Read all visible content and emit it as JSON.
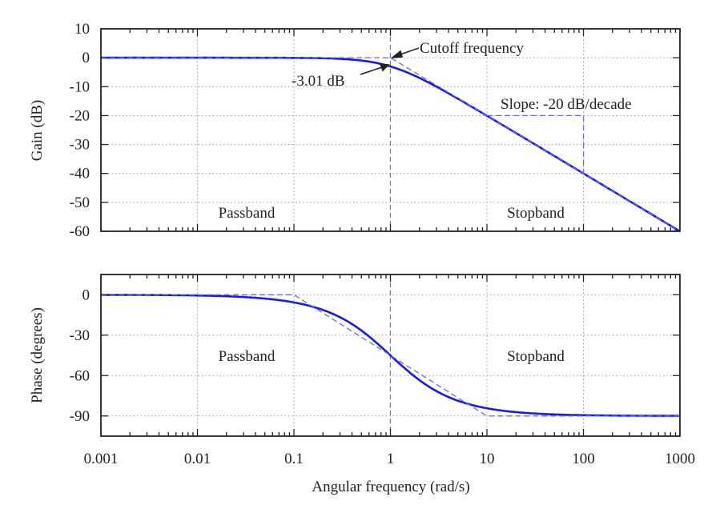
{
  "chart_data": [
    {
      "type": "line",
      "panel": "gain",
      "ylabel": "Gain (dB)",
      "xlabel": "",
      "xscale": "log",
      "xlim": [
        0.001,
        1000
      ],
      "ylim": [
        -60,
        10
      ],
      "yticks": [
        10,
        0,
        -10,
        -20,
        -30,
        -40,
        -50,
        -60
      ],
      "xticks": [
        0.001,
        0.01,
        0.1,
        1,
        10,
        100,
        1000
      ],
      "grid": true,
      "series": [
        {
          "style": "solid",
          "color": "#1a1ae6",
          "formula": "-10*log10(1+w^2)",
          "x": [
            0.001,
            0.01,
            0.1,
            0.3,
            0.5,
            1,
            2,
            3,
            10,
            100,
            1000
          ],
          "y": [
            0,
            0,
            -0.04,
            -0.37,
            -0.97,
            -3.01,
            -6.99,
            -10,
            -20.04,
            -40,
            -60
          ]
        },
        {
          "style": "dashed",
          "color": "#6a6af0",
          "x": [
            0.001,
            1,
            1000
          ],
          "y": [
            0,
            0,
            -60
          ]
        },
        {
          "style": "dashed",
          "color": "#6a6af0",
          "x": [
            10,
            100,
            100
          ],
          "y": [
            -20,
            -20,
            -40
          ]
        }
      ],
      "cutoff_line_x": 1,
      "annotations": {
        "cutoff": "Cutoff frequency",
        "minus3db": "-3.01 dB",
        "slope": "Slope: -20 dB/decade",
        "passband": "Passband",
        "stopband": "Stopband"
      }
    },
    {
      "type": "line",
      "panel": "phase",
      "ylabel": "Phase (degrees)",
      "xlabel": "Angular frequency (rad/s)",
      "xscale": "log",
      "xlim": [
        0.001,
        1000
      ],
      "ylim": [
        -105,
        15
      ],
      "yticks": [
        0,
        -30,
        -60,
        -90
      ],
      "xticks": [
        0.001,
        0.01,
        0.1,
        1,
        10,
        100,
        1000
      ],
      "xticklabels": [
        "0.001",
        "0.01",
        "0.1",
        "1",
        "10",
        "100",
        "1000"
      ],
      "grid": true,
      "series": [
        {
          "style": "solid",
          "color": "#1a1ae6",
          "formula": "-atan(w) in degrees",
          "x": [
            0.001,
            0.01,
            0.1,
            0.3,
            1,
            3,
            10,
            100,
            1000
          ],
          "y": [
            0,
            -0.6,
            -5.7,
            -16.7,
            -45,
            -71.6,
            -84.3,
            -89.4,
            -90
          ]
        },
        {
          "style": "dashed",
          "color": "#6a6af0",
          "x": [
            0.001,
            0.1,
            10,
            1000
          ],
          "y": [
            0,
            0,
            -90,
            -90
          ]
        }
      ],
      "cutoff_line_x": 1,
      "annotations": {
        "passband": "Passband",
        "stopband": "Stopband"
      }
    }
  ]
}
